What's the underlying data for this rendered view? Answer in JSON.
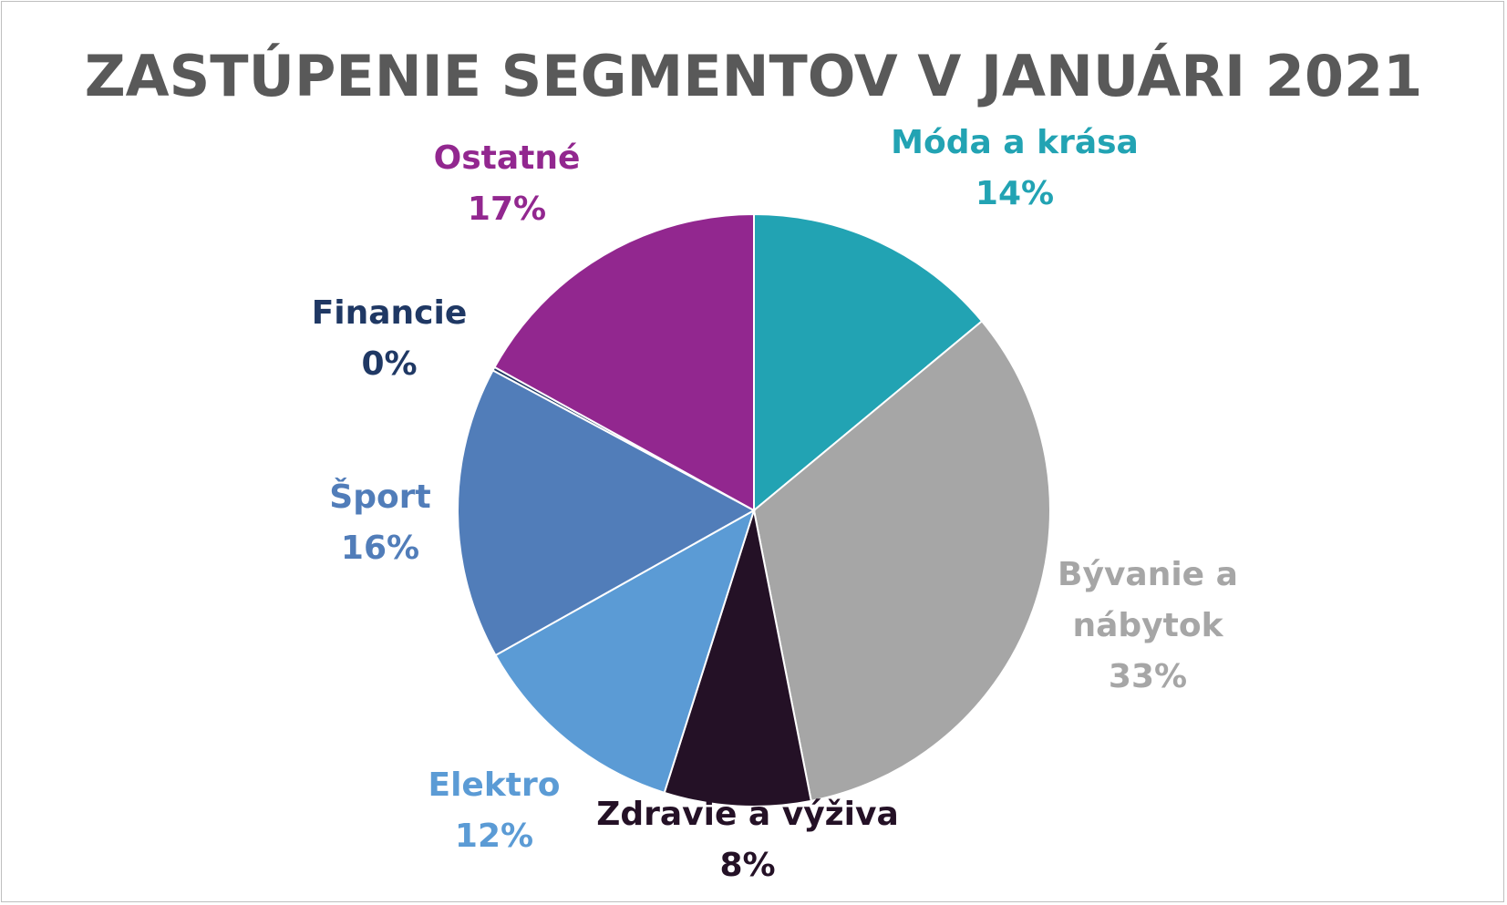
{
  "chart_data": {
    "type": "pie",
    "title": "ZASTÚPENIE SEGMENTOV V JANUÁRI 2021",
    "slices": [
      {
        "label": "Móda a krása",
        "value": 14,
        "value_label": "14%",
        "color": "#22A3B3",
        "label_lines": [
          "Móda a krása",
          "14%"
        ]
      },
      {
        "label": "Bývanie a nábytok",
        "value": 33,
        "value_label": "33%",
        "color": "#A6A6A6",
        "label_lines": [
          "Bývanie a",
          "nábytok",
          "33%"
        ]
      },
      {
        "label": "Zdravie a výživa",
        "value": 8,
        "value_label": "8%",
        "color": "#241126",
        "label_lines": [
          "Zdravie a výživa",
          "8%"
        ]
      },
      {
        "label": "Elektro",
        "value": 12,
        "value_label": "12%",
        "color": "#5B9BD5",
        "label_lines": [
          "Elektro",
          "12%"
        ]
      },
      {
        "label": "Šport",
        "value": 16,
        "value_label": "16%",
        "color": "#517DB9",
        "label_lines": [
          "Šport",
          "16%"
        ]
      },
      {
        "label": "Financie",
        "value": 0.2,
        "value_label": "0%",
        "color": "#1F3864",
        "label_lines": [
          "Financie",
          "0%"
        ]
      },
      {
        "label": "Ostatné",
        "value": 17,
        "value_label": "17%",
        "color": "#92278F",
        "label_lines": [
          "Ostatné",
          "17%"
        ]
      }
    ]
  }
}
